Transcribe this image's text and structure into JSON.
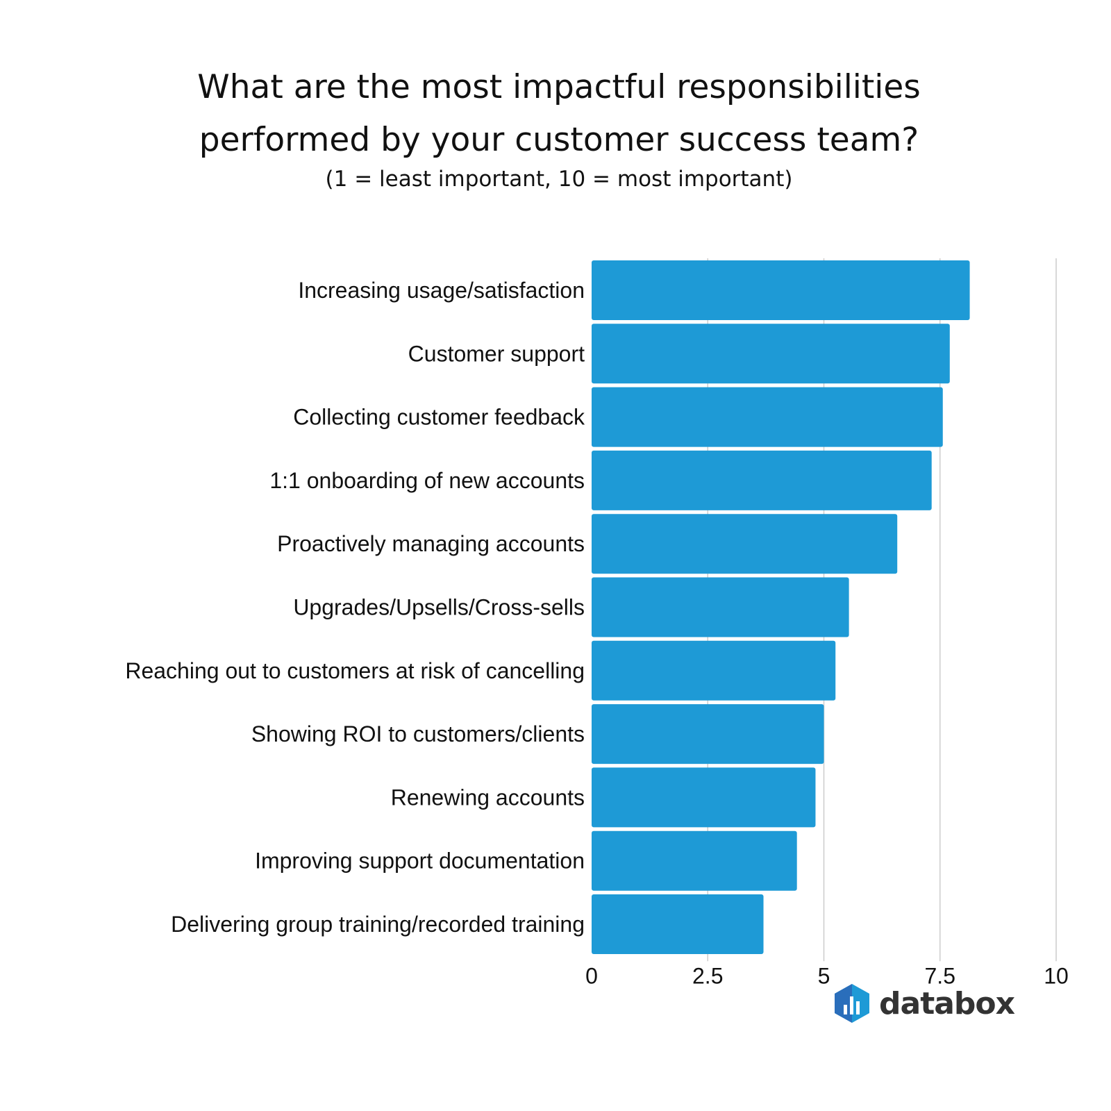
{
  "chart_data": {
    "type": "bar",
    "orientation": "horizontal",
    "title": "What are the most impactful responsibilities performed by your customer success team?",
    "title_lines": [
      "What are the most impactful responsibilities",
      "performed by your customer success team?"
    ],
    "subtitle": "(1 = least important, 10 = most important)",
    "categories": [
      "Increasing usage/satisfaction",
      "Customer support",
      "Collecting customer feedback",
      "1:1 onboarding of new accounts",
      "Proactively managing accounts",
      "Upgrades/Upsells/Cross-sells",
      "Reaching out to customers at risk of cancelling",
      "Showing ROI to customers/clients",
      "Renewing accounts",
      "Improving support documentation",
      "Delivering group training/recorded training"
    ],
    "values": [
      8.14,
      7.71,
      7.56,
      7.32,
      6.58,
      5.54,
      5.25,
      5.0,
      4.82,
      4.42,
      3.7
    ],
    "xlim": [
      0,
      10
    ],
    "xticks": [
      "0",
      "2.5",
      "5",
      "7.5",
      "10"
    ],
    "xtick_values": [
      0,
      2.5,
      5,
      7.5,
      10
    ],
    "grid": true,
    "bar_color": "#1e9ad6",
    "grid_color": "#cccccc"
  },
  "brand": {
    "name": "databox",
    "colors": [
      "#2a6ebb",
      "#1e9ad6"
    ]
  }
}
